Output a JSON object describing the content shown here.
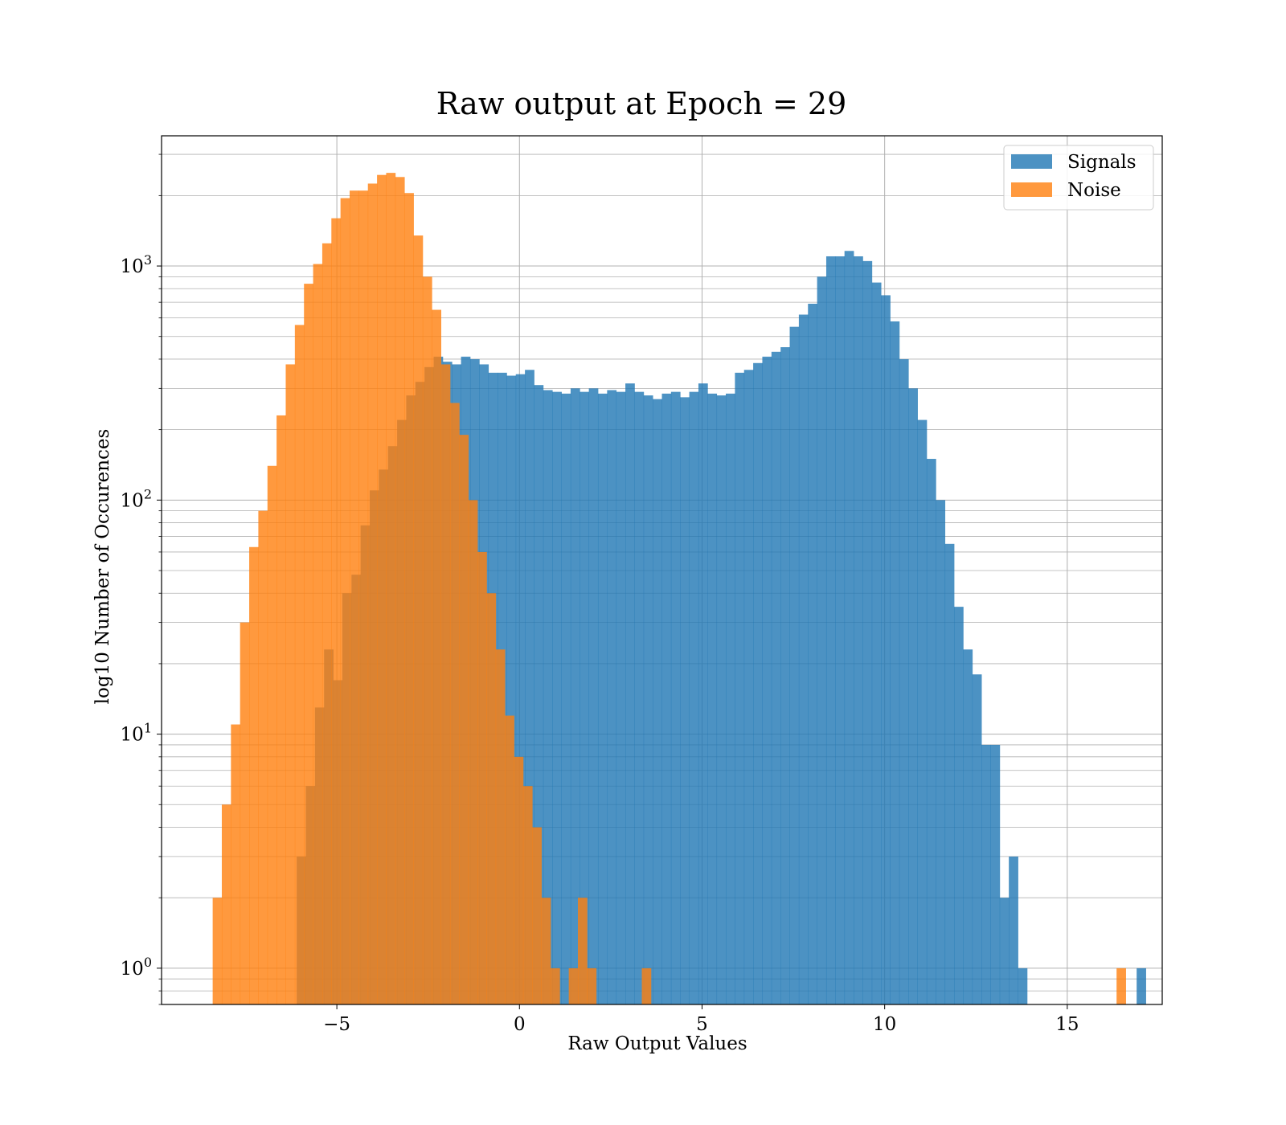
{
  "chart_data": {
    "type": "histogram",
    "title": "Raw output at Epoch = 29",
    "xlabel": "Raw Output Values",
    "ylabel": "log10 Number of Occurences",
    "xscale": "linear",
    "yscale": "log",
    "xlim": [
      -9.8,
      17.6
    ],
    "ylim": [
      0.7,
      3600
    ],
    "xticks": [
      -5,
      0,
      5,
      10,
      15
    ],
    "xtick_labels": [
      "−5",
      "0",
      "5",
      "10",
      "15"
    ],
    "yticks": [
      1,
      10,
      100,
      1000
    ],
    "ytick_labels": [
      {
        "base": "10",
        "exp": "0"
      },
      {
        "base": "10",
        "exp": "1"
      },
      {
        "base": "10",
        "exp": "2"
      },
      {
        "base": "10",
        "exp": "3"
      }
    ],
    "grid": true,
    "legend_position": "top-right",
    "series": [
      {
        "name": "Signals",
        "color": "#1f77b4",
        "opacity": 0.8,
        "bin_start": -6.1,
        "bin_width": 0.25,
        "values": [
          3,
          6,
          13,
          23,
          17,
          40,
          48,
          78,
          110,
          135,
          170,
          220,
          280,
          320,
          370,
          410,
          390,
          380,
          410,
          400,
          380,
          350,
          350,
          340,
          345,
          360,
          310,
          295,
          290,
          285,
          300,
          290,
          300,
          285,
          295,
          290,
          315,
          290,
          280,
          270,
          285,
          290,
          275,
          290,
          315,
          285,
          280,
          285,
          350,
          360,
          385,
          410,
          430,
          450,
          550,
          620,
          690,
          900,
          1100,
          1100,
          1160,
          1100,
          1050,
          850,
          750,
          580,
          400,
          300,
          220,
          150,
          100,
          65,
          35,
          23,
          18,
          9,
          9,
          2,
          3,
          1,
          0,
          0,
          0,
          0,
          0,
          0,
          0,
          0,
          0,
          0,
          0,
          0,
          1
        ]
      },
      {
        "name": "Noise",
        "color": "#ff7f0e",
        "opacity": 0.8,
        "bin_start": -8.4,
        "bin_width": 0.25,
        "values": [
          2,
          5,
          11,
          30,
          63,
          90,
          140,
          230,
          380,
          560,
          840,
          1020,
          1250,
          1600,
          1950,
          2100,
          2100,
          2250,
          2450,
          2500,
          2400,
          2050,
          1350,
          900,
          650,
          380,
          260,
          190,
          100,
          60,
          40,
          23,
          12,
          8,
          6,
          4,
          2,
          1,
          0,
          1,
          2,
          1,
          0,
          0,
          0,
          0,
          0,
          1,
          0,
          0,
          0,
          0,
          0,
          0,
          0,
          0,
          0,
          0,
          0,
          0,
          0,
          0,
          0,
          0,
          0,
          0,
          0,
          0,
          0,
          0,
          0,
          0,
          0,
          0,
          0,
          0,
          0,
          0,
          0,
          0,
          0,
          0,
          0,
          0,
          0,
          0,
          0,
          0,
          0,
          0,
          0,
          0,
          0,
          0,
          0,
          0,
          0,
          0,
          0,
          1
        ]
      }
    ]
  }
}
